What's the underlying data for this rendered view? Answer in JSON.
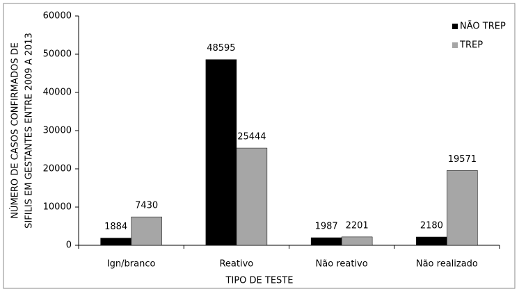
{
  "chart_data": {
    "type": "bar",
    "xlabel": "TIPO DE TESTE",
    "ylabel": [
      "NÚMERO DE CASOS CONFIRMADOS DE",
      "SIFILIS EM GESTANTES  ENTRE 2009 A 2013"
    ],
    "categories": [
      "Ign/branco",
      "Reativo",
      "Não reativo",
      "Não realizado"
    ],
    "series": [
      {
        "name": "NÃO TREP",
        "color": "#000000",
        "values": [
          1884,
          48595,
          1987,
          2180
        ]
      },
      {
        "name": "TREP",
        "color": "#a6a6a6",
        "values": [
          7430,
          25444,
          2201,
          19571
        ]
      }
    ],
    "ylim": [
      0,
      60000
    ],
    "yticks": [
      0,
      10000,
      20000,
      30000,
      40000,
      50000,
      60000
    ],
    "legend": "top-right"
  }
}
